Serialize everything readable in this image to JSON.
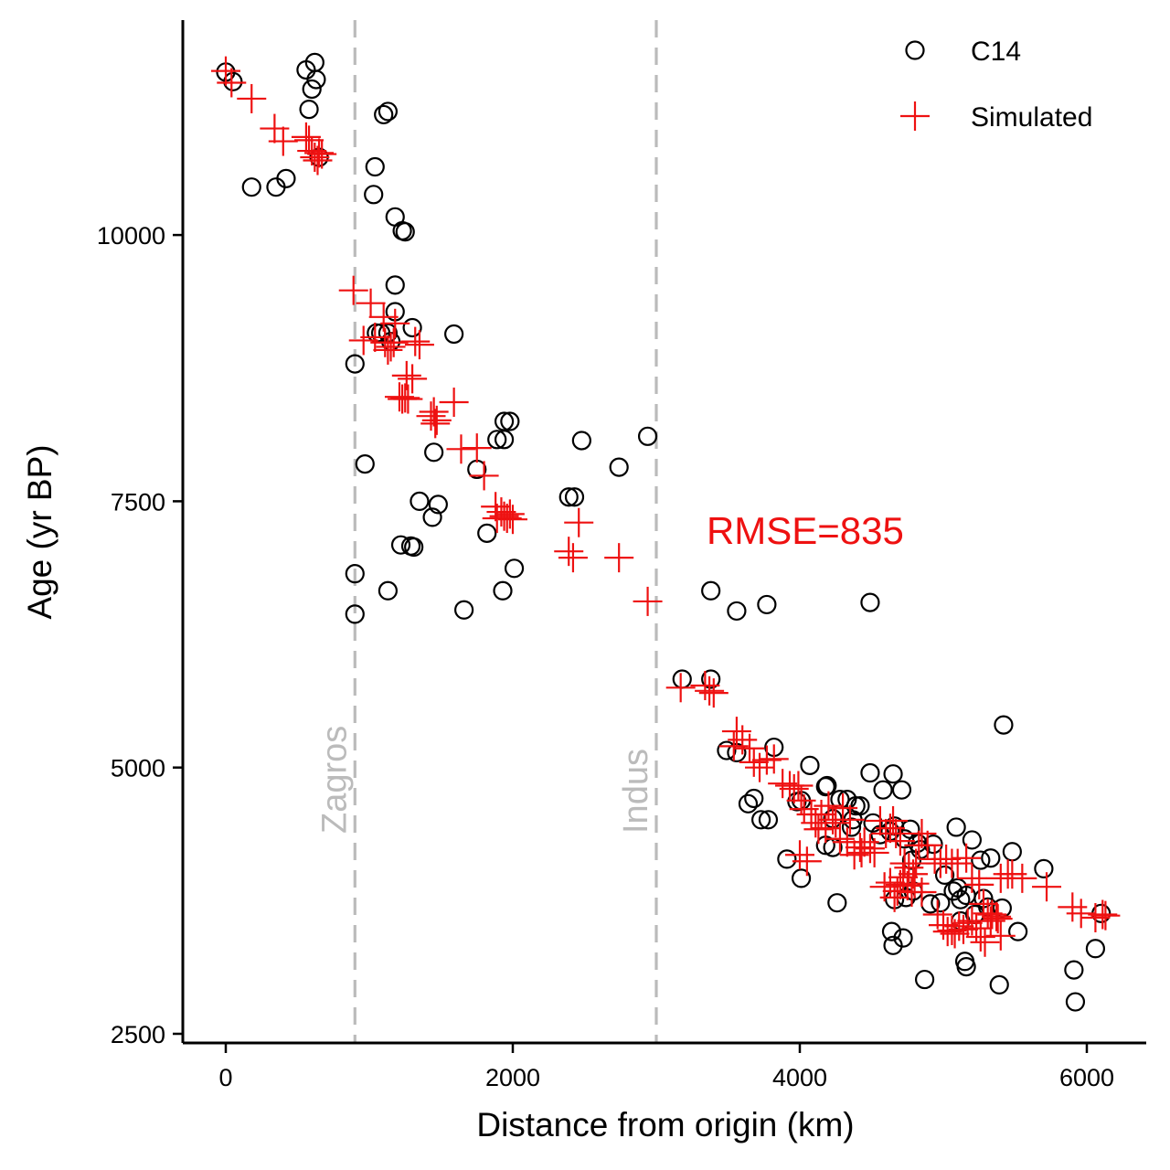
{
  "chart_data": {
    "type": "scatter",
    "title": "",
    "xlabel": "Distance from origin (km)",
    "ylabel": "Age (yr BP)",
    "xlim": [
      -300,
      6400
    ],
    "ylim": [
      2400,
      12000
    ],
    "xticks": [
      0,
      2000,
      4000,
      6000
    ],
    "yticks": [
      2500,
      5000,
      7500,
      10000
    ],
    "xtick_labels": [
      "0",
      "2000",
      "4000",
      "6000"
    ],
    "ytick_labels": [
      "2500",
      "5000",
      "7500",
      "10000"
    ],
    "grid": false,
    "legend_position": "top-right",
    "colors": {
      "c14": "#000000",
      "simulated": "#ee1111",
      "reference_lines": "#bbbbbb"
    },
    "reference_lines": [
      {
        "label": "Zagros",
        "x": 900
      },
      {
        "label": "Indus",
        "x": 3000
      }
    ],
    "annotation": {
      "text": "RMSE=835",
      "x": 3350,
      "y": 7100
    },
    "series": [
      {
        "name": "C14",
        "marker": "open-circle",
        "points": [
          [
            0,
            11530
          ],
          [
            50,
            11440
          ],
          [
            180,
            10450
          ],
          [
            350,
            10450
          ],
          [
            420,
            10530
          ],
          [
            560,
            11550
          ],
          [
            600,
            11370
          ],
          [
            580,
            11180
          ],
          [
            630,
            11460
          ],
          [
            620,
            11620
          ],
          [
            650,
            10730
          ],
          [
            1040,
            10640
          ],
          [
            1030,
            10380
          ],
          [
            1100,
            11130
          ],
          [
            1130,
            11160
          ],
          [
            1180,
            10170
          ],
          [
            1230,
            10040
          ],
          [
            1250,
            10030
          ],
          [
            900,
            8790
          ],
          [
            970,
            7850
          ],
          [
            1180,
            9530
          ],
          [
            1180,
            9280
          ],
          [
            1050,
            9080
          ],
          [
            1080,
            9080
          ],
          [
            1130,
            9080
          ],
          [
            1150,
            9000
          ],
          [
            1300,
            9130
          ],
          [
            1590,
            9070
          ],
          [
            1450,
            7960
          ],
          [
            1350,
            7500
          ],
          [
            1480,
            7470
          ],
          [
            1440,
            7350
          ],
          [
            1220,
            7090
          ],
          [
            1290,
            7080
          ],
          [
            1310,
            7070
          ],
          [
            900,
            6820
          ],
          [
            900,
            6440
          ],
          [
            1130,
            6660
          ],
          [
            1660,
            6480
          ],
          [
            1750,
            7800
          ],
          [
            1890,
            8080
          ],
          [
            1940,
            8080
          ],
          [
            1940,
            8250
          ],
          [
            1980,
            8250
          ],
          [
            1820,
            7200
          ],
          [
            1930,
            6660
          ],
          [
            2010,
            6870
          ],
          [
            2390,
            7540
          ],
          [
            2430,
            7540
          ],
          [
            2480,
            8070
          ],
          [
            2740,
            7820
          ],
          [
            2940,
            8110
          ],
          [
            3380,
            6660
          ],
          [
            3560,
            6470
          ],
          [
            3770,
            6530
          ],
          [
            4490,
            6550
          ],
          [
            3180,
            5830
          ],
          [
            3380,
            5830
          ],
          [
            5420,
            5400
          ],
          [
            3490,
            5160
          ],
          [
            3560,
            5140
          ],
          [
            3820,
            5190
          ],
          [
            4070,
            5020
          ],
          [
            3640,
            4660
          ],
          [
            3680,
            4710
          ],
          [
            3730,
            4510
          ],
          [
            3780,
            4510
          ],
          [
            3910,
            4140
          ],
          [
            3980,
            4680
          ],
          [
            4010,
            4690
          ],
          [
            4010,
            3960
          ],
          [
            4190,
            4830
          ],
          [
            4180,
            4820
          ],
          [
            4230,
            4520
          ],
          [
            4280,
            4700
          ],
          [
            4330,
            4700
          ],
          [
            4360,
            4440
          ],
          [
            4370,
            4510
          ],
          [
            4390,
            4640
          ],
          [
            4420,
            4640
          ],
          [
            4490,
            4950
          ],
          [
            4510,
            4480
          ],
          [
            4560,
            4370
          ],
          [
            4580,
            4790
          ],
          [
            4630,
            4400
          ],
          [
            4650,
            4940
          ],
          [
            4660,
            4450
          ],
          [
            4710,
            4790
          ],
          [
            4730,
            4330
          ],
          [
            4770,
            4420
          ],
          [
            4820,
            4290
          ],
          [
            4840,
            4230
          ],
          [
            4870,
            3010
          ],
          [
            4910,
            3720
          ],
          [
            4930,
            4280
          ],
          [
            4980,
            3730
          ],
          [
            5010,
            3990
          ],
          [
            5070,
            3840
          ],
          [
            5100,
            3870
          ],
          [
            5120,
            3760
          ],
          [
            5160,
            3800
          ],
          [
            5150,
            3180
          ],
          [
            5160,
            3130
          ],
          [
            5200,
            4320
          ],
          [
            5220,
            3620
          ],
          [
            5260,
            4130
          ],
          [
            5280,
            3770
          ],
          [
            5310,
            3690
          ],
          [
            5330,
            4150
          ],
          [
            5390,
            2960
          ],
          [
            5410,
            3680
          ],
          [
            5480,
            4210
          ],
          [
            5520,
            3460
          ],
          [
            5700,
            4050
          ],
          [
            5910,
            3100
          ],
          [
            5920,
            2800
          ],
          [
            6060,
            3300
          ],
          [
            6100,
            3630
          ],
          [
            4180,
            4270
          ],
          [
            4230,
            4250
          ],
          [
            4260,
            3730
          ],
          [
            4640,
            3460
          ],
          [
            4650,
            3330
          ],
          [
            4660,
            3760
          ],
          [
            4720,
            3400
          ],
          [
            4740,
            3780
          ],
          [
            4780,
            4130
          ],
          [
            4790,
            3840
          ],
          [
            5090,
            4440
          ],
          [
            5120,
            3560
          ]
        ]
      },
      {
        "name": "Simulated",
        "marker": "plus",
        "points": [
          [
            0,
            11540
          ],
          [
            40,
            11430
          ],
          [
            180,
            11280
          ],
          [
            340,
            11000
          ],
          [
            400,
            10880
          ],
          [
            560,
            10920
          ],
          [
            580,
            10890
          ],
          [
            600,
            10790
          ],
          [
            620,
            10730
          ],
          [
            640,
            10700
          ],
          [
            650,
            10770
          ],
          [
            670,
            10760
          ],
          [
            3370,
            5720
          ],
          [
            3400,
            5700
          ],
          [
            890,
            9480
          ],
          [
            1010,
            9360
          ],
          [
            1100,
            9230
          ],
          [
            1180,
            9170
          ],
          [
            960,
            9010
          ],
          [
            1040,
            9040
          ],
          [
            1110,
            8990
          ],
          [
            1130,
            8920
          ],
          [
            1150,
            8950
          ],
          [
            1170,
            8990
          ],
          [
            1320,
            9000
          ],
          [
            1350,
            8970
          ],
          [
            1210,
            8480
          ],
          [
            1230,
            8460
          ],
          [
            1250,
            8470
          ],
          [
            1270,
            8460
          ],
          [
            1260,
            8680
          ],
          [
            1300,
            8650
          ],
          [
            1430,
            8300
          ],
          [
            1450,
            8340
          ],
          [
            1460,
            8230
          ],
          [
            1470,
            8260
          ],
          [
            1590,
            8430
          ],
          [
            1640,
            7990
          ],
          [
            1750,
            8000
          ],
          [
            1800,
            7740
          ],
          [
            1880,
            7450
          ],
          [
            1890,
            7340
          ],
          [
            1920,
            7400
          ],
          [
            1940,
            7360
          ],
          [
            1960,
            7340
          ],
          [
            1980,
            7380
          ],
          [
            2000,
            7330
          ],
          [
            2390,
            7030
          ],
          [
            2420,
            6970
          ],
          [
            2460,
            7300
          ],
          [
            2740,
            6970
          ],
          [
            2940,
            6560
          ],
          [
            3170,
            5750
          ],
          [
            3340,
            5770
          ],
          [
            3540,
            5200
          ],
          [
            3560,
            5340
          ],
          [
            3600,
            5260
          ],
          [
            3650,
            5180
          ],
          [
            3680,
            5050
          ],
          [
            3720,
            5000
          ],
          [
            3770,
            5070
          ],
          [
            3820,
            5080
          ],
          [
            3880,
            4850
          ],
          [
            3930,
            4830
          ],
          [
            3960,
            4800
          ],
          [
            3990,
            4830
          ],
          [
            4010,
            4690
          ],
          [
            4030,
            4610
          ],
          [
            4080,
            4560
          ],
          [
            4110,
            4480
          ],
          [
            4130,
            4420
          ],
          [
            4150,
            4560
          ],
          [
            4180,
            4430
          ],
          [
            4200,
            4640
          ],
          [
            4230,
            4510
          ],
          [
            4250,
            4480
          ],
          [
            4280,
            4330
          ],
          [
            4300,
            4620
          ],
          [
            4330,
            4300
          ],
          [
            4350,
            4510
          ],
          [
            4380,
            4180
          ],
          [
            4420,
            4250
          ],
          [
            4450,
            4300
          ],
          [
            4490,
            4240
          ],
          [
            4520,
            4200
          ],
          [
            4560,
            4500
          ],
          [
            4600,
            4380
          ],
          [
            4630,
            4430
          ],
          [
            4650,
            4500
          ],
          [
            4670,
            4380
          ],
          [
            4700,
            4310
          ],
          [
            4730,
            4100
          ],
          [
            4760,
            4060
          ],
          [
            4790,
            4000
          ],
          [
            4810,
            4100
          ],
          [
            4830,
            4270
          ],
          [
            4850,
            4380
          ],
          [
            4890,
            4270
          ],
          [
            4940,
            4140
          ],
          [
            4980,
            4100
          ],
          [
            5020,
            4140
          ],
          [
            5060,
            4100
          ],
          [
            5100,
            4100
          ],
          [
            5160,
            4150
          ],
          [
            5200,
            3960
          ],
          [
            5250,
            3900
          ],
          [
            5280,
            3720
          ],
          [
            5310,
            3630
          ],
          [
            5340,
            3620
          ],
          [
            5370,
            3600
          ],
          [
            5380,
            3580
          ],
          [
            5400,
            3960
          ],
          [
            5450,
            4000
          ],
          [
            5480,
            4000
          ],
          [
            5550,
            3960
          ],
          [
            5720,
            3880
          ],
          [
            5900,
            3690
          ],
          [
            5960,
            3630
          ],
          [
            6060,
            3590
          ],
          [
            6110,
            3620
          ],
          [
            6130,
            3610
          ],
          [
            4590,
            3880
          ],
          [
            4630,
            3920
          ],
          [
            4660,
            3780
          ],
          [
            4680,
            3840
          ],
          [
            4700,
            3900
          ],
          [
            4720,
            3970
          ],
          [
            4750,
            3890
          ],
          [
            4780,
            3830
          ],
          [
            4800,
            3910
          ],
          [
            4850,
            3830
          ],
          [
            4960,
            3620
          ],
          [
            5000,
            3520
          ],
          [
            5030,
            3460
          ],
          [
            5060,
            3470
          ],
          [
            5080,
            3440
          ],
          [
            5110,
            3510
          ],
          [
            5140,
            3480
          ],
          [
            5170,
            3540
          ],
          [
            5200,
            3560
          ],
          [
            5230,
            3490
          ],
          [
            5260,
            3410
          ],
          [
            5290,
            3360
          ],
          [
            5330,
            3560
          ],
          [
            5400,
            3420
          ],
          [
            4000,
            4180
          ],
          [
            4050,
            4120
          ],
          [
            4430,
            4200
          ]
        ]
      }
    ]
  }
}
